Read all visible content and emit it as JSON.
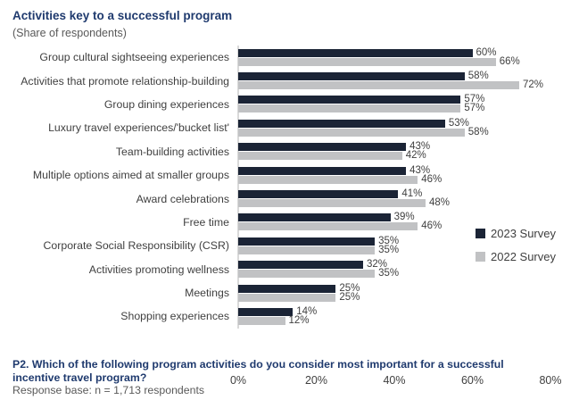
{
  "header": {
    "title": "Activities key to a successful program",
    "subtitle": "(Share of respondents)"
  },
  "chart_data": {
    "type": "bar",
    "orientation": "horizontal",
    "title": "Activities key to a successful program",
    "subtitle": "(Share of respondents)",
    "categories": [
      "Group cultural sightseeing experiences",
      "Activities that promote relationship-building",
      "Group dining experiences",
      "Luxury travel experiences/'bucket list'",
      "Team-building activities",
      "Multiple options aimed at smaller groups",
      "Award celebrations",
      "Free time",
      "Corporate Social Responsibility (CSR)",
      "Activities promoting wellness",
      "Meetings",
      "Shopping experiences"
    ],
    "series": [
      {
        "name": "2023 Survey",
        "color": "#1b2436",
        "values": [
          60,
          58,
          57,
          53,
          43,
          43,
          41,
          39,
          35,
          32,
          25,
          14
        ]
      },
      {
        "name": "2022 Survey",
        "color": "#c1c2c4",
        "values": [
          66,
          72,
          57,
          58,
          42,
          46,
          48,
          46,
          35,
          35,
          25,
          12
        ]
      }
    ],
    "value_suffix": "%",
    "xlim": [
      0,
      80
    ],
    "x_ticks": [
      "0%",
      "20%",
      "40%",
      "60%",
      "80%"
    ],
    "x_tick_values": [
      0,
      20,
      40,
      60,
      80
    ],
    "grid": false,
    "legend_position": "right"
  },
  "footer": {
    "question": "P2. Which of the following program activities do you consider most important for a successful incentive travel program?",
    "response_base": "Response base: n = 1,713 respondents"
  },
  "colors": {
    "series_2023": "#1b2436",
    "series_2022": "#c1c2c4",
    "title_blue": "#1f3a6e",
    "text_gray": "#595959",
    "label_dark": "#3f3f3f",
    "axis_line": "#d9d9d9",
    "background": "#ffffff"
  }
}
